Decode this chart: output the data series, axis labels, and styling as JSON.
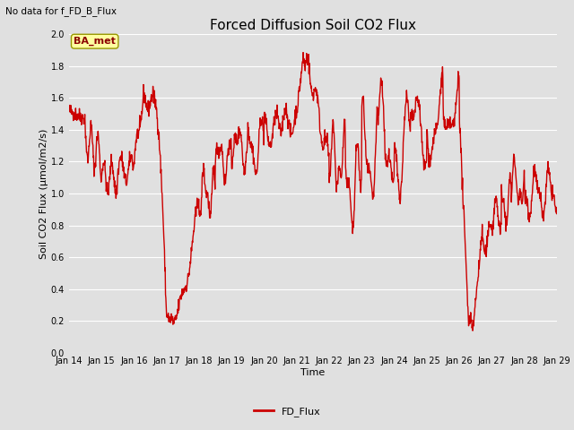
{
  "title": "Forced Diffusion Soil CO2 Flux",
  "top_left_text": "No data for f_FD_B_Flux",
  "xlabel": "Time",
  "ylabel": "Soil CO2 Flux (μmol/m2/s)",
  "ylim": [
    0.0,
    2.0
  ],
  "yticks": [
    0.0,
    0.2,
    0.4,
    0.6,
    0.8,
    1.0,
    1.2,
    1.4,
    1.6,
    1.8,
    2.0
  ],
  "line_color": "#CC0000",
  "line_width": 1.0,
  "legend_label": "FD_Flux",
  "legend_line_color": "#CC0000",
  "background_color": "#E0E0E0",
  "axes_bg_color": "#E0E0E0",
  "grid_color": "#FFFFFF",
  "annotation_text": "BA_met",
  "annotation_color": "#8B0000",
  "annotation_bg": "#FFFFA0",
  "x_start_day": 14,
  "x_end_day": 29,
  "x_tick_days": [
    14,
    15,
    16,
    17,
    18,
    19,
    20,
    21,
    22,
    23,
    24,
    25,
    26,
    27,
    28,
    29
  ],
  "title_fontsize": 11,
  "label_fontsize": 8,
  "tick_fontsize": 7,
  "legend_fontsize": 8
}
